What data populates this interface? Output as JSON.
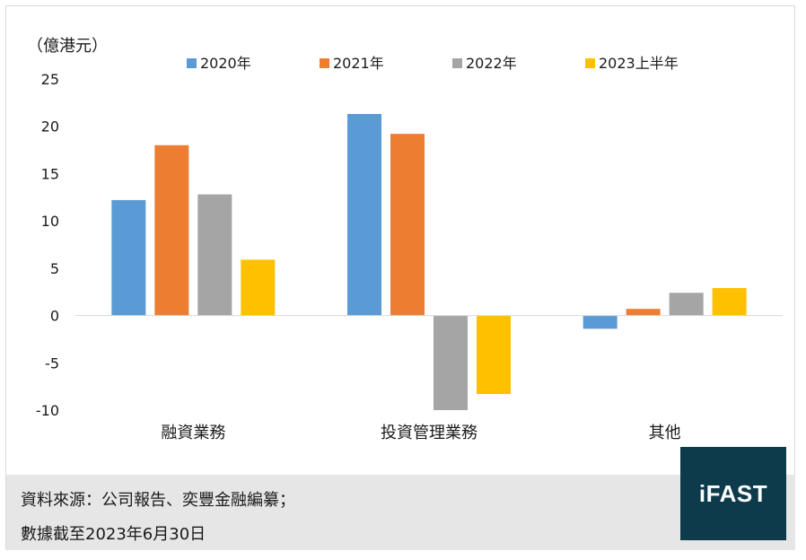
{
  "chart_data": {
    "type": "bar",
    "unit_label": "（億港元）",
    "categories": [
      "融資業務",
      "投資管理業務",
      "其他"
    ],
    "series": [
      {
        "name": "2020年",
        "color": "#5b9bd5",
        "values": [
          12.2,
          21.3,
          -1.4
        ]
      },
      {
        "name": "2021年",
        "color": "#ed7d31",
        "values": [
          18.0,
          19.2,
          0.7
        ]
      },
      {
        "name": "2022年",
        "color": "#a5a5a5",
        "values": [
          12.8,
          -10.0,
          2.4
        ]
      },
      {
        "name": "2023上半年",
        "color": "#ffc000",
        "values": [
          5.9,
          -8.3,
          2.9
        ]
      }
    ],
    "ylim": [
      -10,
      25
    ],
    "yticks": [
      25,
      20,
      15,
      10,
      5,
      0,
      -5,
      -10
    ],
    "legend_position": "top",
    "grid": false
  },
  "footer": {
    "source_line_1": "資料來源：公司報告、奕豐金融編纂；",
    "source_line_2": "數據截至2023年6月30日"
  },
  "logo": {
    "text": "iFAST"
  }
}
